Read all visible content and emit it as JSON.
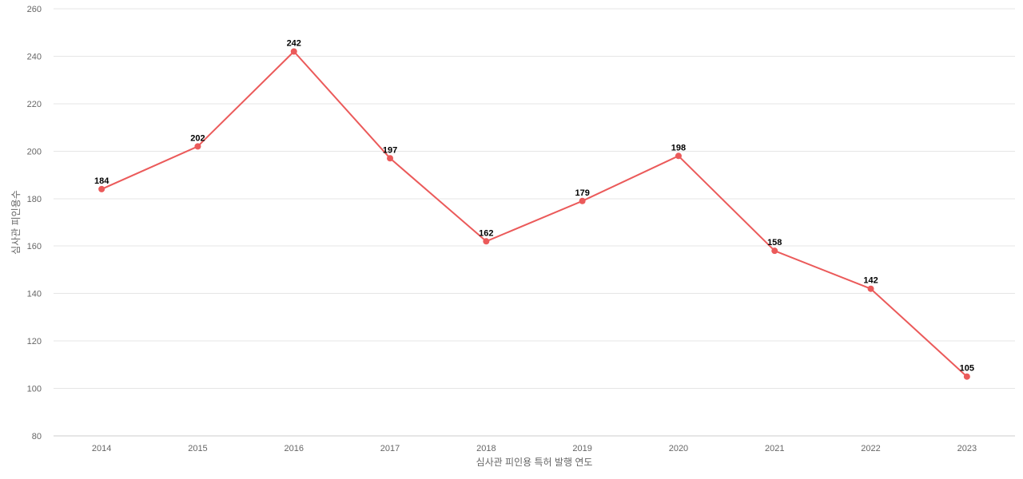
{
  "chart_data": {
    "type": "line",
    "title": "",
    "xlabel": "심사관 피인용 특허 발행 연도",
    "ylabel": "심사관 피인용수",
    "categories": [
      "2014",
      "2015",
      "2016",
      "2017",
      "2018",
      "2019",
      "2020",
      "2021",
      "2022",
      "2023"
    ],
    "series": [
      {
        "values": [
          184,
          202,
          242,
          197,
          162,
          179,
          198,
          158,
          142,
          105
        ],
        "color": "#eb5a5a"
      }
    ],
    "ylim": [
      80,
      260
    ],
    "yticks": [
      80,
      100,
      120,
      140,
      160,
      180,
      200,
      220,
      240,
      260
    ],
    "grid": true,
    "legend": "none"
  }
}
